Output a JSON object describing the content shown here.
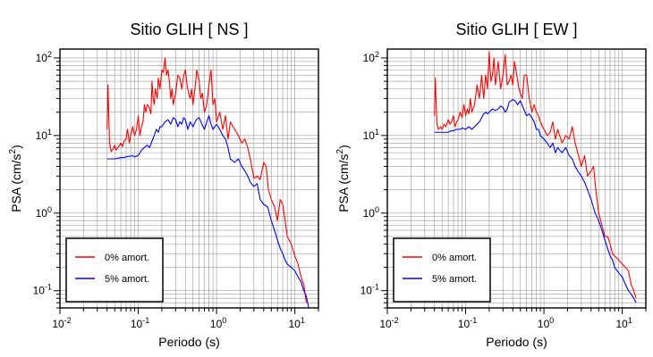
{
  "chart_data": [
    {
      "type": "line",
      "title": "Sitio GLIH [ NS ]",
      "xlabel": "Periodo (s)",
      "ylabel": "PSA (cm/s",
      "ylabel_sup": "2",
      "ylabel_close": ")",
      "xscale": "log",
      "yscale": "log",
      "xlim": [
        0.01,
        20
      ],
      "ylim": [
        0.06,
        130
      ],
      "xticks": [
        {
          "v": 0.01,
          "b": "10",
          "e": "-2"
        },
        {
          "v": 0.1,
          "b": "10",
          "e": "-1"
        },
        {
          "v": 1,
          "b": "10",
          "e": "0"
        },
        {
          "v": 10,
          "b": "10",
          "e": "1"
        }
      ],
      "yticks": [
        {
          "v": 0.1,
          "b": "10",
          "e": "-1"
        },
        {
          "v": 1,
          "b": "10",
          "e": "0"
        },
        {
          "v": 10,
          "b": "10",
          "e": "1"
        },
        {
          "v": 100,
          "b": "10",
          "e": "2"
        }
      ],
      "grid": true,
      "legend_position": "bottom-left",
      "series": [
        {
          "name": "0% amort.",
          "color": "#ff0000",
          "x": [
            0.04,
            0.041,
            0.043,
            0.045,
            0.048,
            0.05,
            0.052,
            0.055,
            0.058,
            0.06,
            0.063,
            0.066,
            0.07,
            0.073,
            0.077,
            0.08,
            0.085,
            0.09,
            0.095,
            0.1,
            0.105,
            0.11,
            0.115,
            0.12,
            0.125,
            0.13,
            0.135,
            0.14,
            0.145,
            0.15,
            0.155,
            0.16,
            0.165,
            0.17,
            0.175,
            0.18,
            0.19,
            0.2,
            0.21,
            0.22,
            0.23,
            0.24,
            0.25,
            0.26,
            0.27,
            0.28,
            0.3,
            0.32,
            0.34,
            0.36,
            0.38,
            0.4,
            0.42,
            0.44,
            0.46,
            0.48,
            0.5,
            0.53,
            0.56,
            0.6,
            0.63,
            0.66,
            0.7,
            0.75,
            0.8,
            0.85,
            0.9,
            0.95,
            1.0,
            1.1,
            1.2,
            1.3,
            1.4,
            1.5,
            1.7,
            1.9,
            2.1,
            2.3,
            2.5,
            2.7,
            3.0,
            3.3,
            3.6,
            4.0,
            4.3,
            4.6,
            5.0,
            5.5,
            6.0,
            6.5,
            7.0,
            7.5,
            8.0,
            9.0,
            10.0,
            11.0,
            12.0,
            13.0,
            14.0
          ],
          "y": [
            12,
            45,
            8,
            6.2,
            6.8,
            7.5,
            6.5,
            7.0,
            7.5,
            8,
            7.2,
            8.5,
            9,
            12,
            8,
            10,
            13,
            10,
            12,
            18,
            10,
            13,
            15,
            25,
            20,
            25,
            24,
            22,
            19,
            50,
            30,
            25,
            40,
            35,
            30,
            55,
            40,
            70,
            65,
            100,
            60,
            70,
            50,
            30,
            40,
            25,
            35,
            60,
            55,
            40,
            60,
            70,
            45,
            35,
            30,
            40,
            25,
            40,
            70,
            50,
            30,
            35,
            20,
            25,
            45,
            70,
            25,
            30,
            15,
            20,
            12,
            18,
            9,
            15,
            12,
            10,
            8,
            9,
            7,
            5,
            2.8,
            3.0,
            2.7,
            4.5,
            4.0,
            2.0,
            1.5,
            1.2,
            0.8,
            1.5,
            1.3,
            0.8,
            0.5,
            0.4,
            0.28,
            0.22,
            0.15,
            0.12,
            0.07
          ]
        },
        {
          "name": "5% amort.",
          "color": "#0000ff",
          "x": [
            0.04,
            0.045,
            0.05,
            0.055,
            0.06,
            0.065,
            0.07,
            0.075,
            0.08,
            0.085,
            0.09,
            0.1,
            0.11,
            0.12,
            0.13,
            0.14,
            0.15,
            0.16,
            0.17,
            0.18,
            0.19,
            0.2,
            0.22,
            0.24,
            0.26,
            0.28,
            0.3,
            0.32,
            0.34,
            0.36,
            0.38,
            0.4,
            0.43,
            0.46,
            0.5,
            0.55,
            0.6,
            0.65,
            0.7,
            0.75,
            0.8,
            0.85,
            0.9,
            1.0,
            1.1,
            1.2,
            1.3,
            1.4,
            1.5,
            1.7,
            1.9,
            2.1,
            2.3,
            2.5,
            2.7,
            3.0,
            3.3,
            3.6,
            4.0,
            4.5,
            5.0,
            5.5,
            6.0,
            6.5,
            7.0,
            7.5,
            8.0,
            9.0,
            10.0,
            11.0,
            12.0,
            13.0,
            14.0,
            15.0
          ],
          "y": [
            5,
            5,
            5,
            5.1,
            5.2,
            5.2,
            5.3,
            5.4,
            5.4,
            5.5,
            5.3,
            5.5,
            6.5,
            7,
            7.5,
            7.0,
            8.5,
            10,
            12,
            11,
            13,
            13,
            15,
            16,
            14,
            17,
            16,
            13,
            15,
            14,
            17,
            16,
            12,
            15,
            13,
            16,
            17,
            14,
            12,
            15,
            18,
            14,
            12,
            14,
            12,
            10,
            9,
            7,
            5,
            4.5,
            5,
            4.0,
            3.5,
            3.0,
            2.5,
            2.2,
            2.4,
            1.5,
            1.3,
            1.2,
            0.8,
            0.6,
            0.45,
            0.35,
            0.3,
            0.25,
            0.22,
            0.2,
            0.18,
            0.15,
            0.13,
            0.1,
            0.085,
            0.06
          ]
        }
      ]
    },
    {
      "type": "line",
      "title": "Sitio GLIH [ EW ]",
      "xlabel": "Periodo (s)",
      "ylabel": "PSA (cm/s",
      "ylabel_sup": "2",
      "ylabel_close": ")",
      "xscale": "log",
      "yscale": "log",
      "xlim": [
        0.01,
        20
      ],
      "ylim": [
        0.06,
        130
      ],
      "xticks": [
        {
          "v": 0.01,
          "b": "10",
          "e": "-2"
        },
        {
          "v": 0.1,
          "b": "10",
          "e": "-1"
        },
        {
          "v": 1,
          "b": "10",
          "e": "0"
        },
        {
          "v": 10,
          "b": "10",
          "e": "1"
        }
      ],
      "yticks": [
        {
          "v": 0.1,
          "b": "10",
          "e": "-1"
        },
        {
          "v": 1,
          "b": "10",
          "e": "0"
        },
        {
          "v": 10,
          "b": "10",
          "e": "1"
        },
        {
          "v": 100,
          "b": "10",
          "e": "2"
        }
      ],
      "grid": true,
      "legend_position": "bottom-left",
      "series": [
        {
          "name": "0% amort.",
          "color": "#ff0000",
          "x": [
            0.04,
            0.041,
            0.043,
            0.045,
            0.048,
            0.05,
            0.053,
            0.056,
            0.06,
            0.063,
            0.066,
            0.07,
            0.073,
            0.077,
            0.08,
            0.085,
            0.09,
            0.095,
            0.1,
            0.105,
            0.11,
            0.115,
            0.12,
            0.13,
            0.14,
            0.15,
            0.16,
            0.17,
            0.18,
            0.19,
            0.2,
            0.21,
            0.22,
            0.23,
            0.24,
            0.25,
            0.26,
            0.28,
            0.3,
            0.32,
            0.34,
            0.36,
            0.38,
            0.4,
            0.42,
            0.45,
            0.48,
            0.5,
            0.53,
            0.56,
            0.6,
            0.65,
            0.7,
            0.75,
            0.8,
            0.85,
            0.9,
            1.0,
            1.1,
            1.2,
            1.3,
            1.4,
            1.5,
            1.7,
            1.9,
            2.1,
            2.3,
            2.5,
            2.7,
            3.0,
            3.3,
            3.6,
            4.0,
            4.3,
            4.6,
            5.0,
            5.5,
            6.0,
            6.5,
            7.0,
            7.5,
            8.0,
            9.0,
            10.0,
            11.0,
            12.0,
            13.0,
            14.0,
            15.0
          ],
          "y": [
            18,
            55,
            14,
            12,
            13,
            12,
            14,
            13,
            16,
            14,
            15,
            18,
            13,
            15,
            16,
            20,
            17,
            25,
            18,
            22,
            19,
            30,
            20,
            25,
            45,
            30,
            60,
            30,
            60,
            40,
            120,
            50,
            60,
            100,
            45,
            60,
            90,
            40,
            60,
            110,
            45,
            50,
            60,
            45,
            90,
            60,
            40,
            35,
            30,
            60,
            60,
            30,
            20,
            25,
            20,
            18,
            15,
            12,
            10,
            11,
            15,
            9,
            12,
            8,
            10,
            9,
            13,
            8,
            6,
            4.0,
            5.5,
            3.0,
            3.5,
            4.0,
            2.0,
            1.0,
            0.7,
            0.5,
            0.5,
            0.4,
            0.3,
            0.28,
            0.25,
            0.22,
            0.2,
            0.18,
            0.12,
            0.1,
            0.08
          ]
        },
        {
          "name": "5% amort.",
          "color": "#0000ff",
          "x": [
            0.04,
            0.045,
            0.05,
            0.055,
            0.06,
            0.065,
            0.07,
            0.075,
            0.08,
            0.085,
            0.09,
            0.1,
            0.11,
            0.12,
            0.13,
            0.14,
            0.15,
            0.16,
            0.17,
            0.18,
            0.19,
            0.2,
            0.22,
            0.24,
            0.26,
            0.28,
            0.3,
            0.32,
            0.34,
            0.36,
            0.38,
            0.4,
            0.43,
            0.46,
            0.5,
            0.55,
            0.6,
            0.65,
            0.7,
            0.75,
            0.8,
            0.85,
            0.9,
            1.0,
            1.1,
            1.2,
            1.3,
            1.4,
            1.5,
            1.7,
            1.9,
            2.1,
            2.3,
            2.5,
            2.7,
            3.0,
            3.3,
            3.6,
            4.0,
            4.5,
            5.0,
            5.5,
            6.0,
            6.5,
            7.0,
            7.5,
            8.0,
            9.0,
            10.0,
            11.0,
            12.0,
            13.0,
            14.0,
            15.0
          ],
          "y": [
            11,
            11,
            11,
            11,
            11,
            11.5,
            11.5,
            12,
            12,
            12,
            12.5,
            12,
            13,
            12,
            13,
            14,
            15,
            17,
            19,
            20,
            19,
            20,
            22,
            21,
            22,
            24,
            23,
            20,
            22,
            27,
            28,
            29,
            28,
            25,
            28,
            22,
            18,
            19,
            17,
            15,
            12,
            12,
            10,
            9,
            8,
            7,
            8,
            6,
            7,
            6,
            7,
            5.5,
            5,
            4,
            3.5,
            3.0,
            2.5,
            2.0,
            1.5,
            1.0,
            0.8,
            0.6,
            0.45,
            0.35,
            0.28,
            0.25,
            0.2,
            0.17,
            0.15,
            0.12,
            0.1,
            0.09,
            0.08,
            0.07
          ]
        }
      ]
    }
  ]
}
